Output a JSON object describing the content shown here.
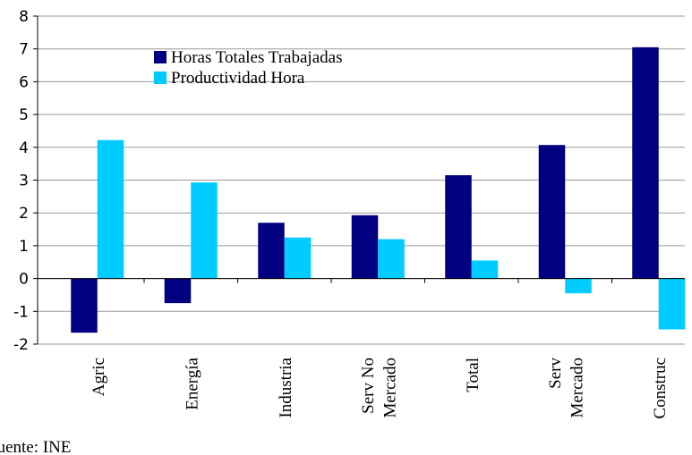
{
  "chart_data": {
    "type": "bar",
    "categories": [
      "Agric",
      "Energía",
      "Industria",
      "Serv No\nMercado",
      "Total",
      "Serv\nMercado",
      "Construc"
    ],
    "series": [
      {
        "name": "Horas Totales Trabajadas",
        "color": "#000080",
        "values": [
          -1.65,
          -0.75,
          1.7,
          1.93,
          3.15,
          4.07,
          7.05
        ]
      },
      {
        "name": "Productividad Hora",
        "color": "#00ccff",
        "values": [
          4.22,
          2.93,
          1.25,
          1.2,
          0.55,
          -0.45,
          -1.55
        ]
      }
    ],
    "ylim": [
      -2,
      8
    ],
    "yticks": [
      -2,
      -1,
      0,
      1,
      2,
      3,
      4,
      5,
      6,
      7,
      8
    ],
    "grid": true,
    "source": "Fuente: INE"
  }
}
